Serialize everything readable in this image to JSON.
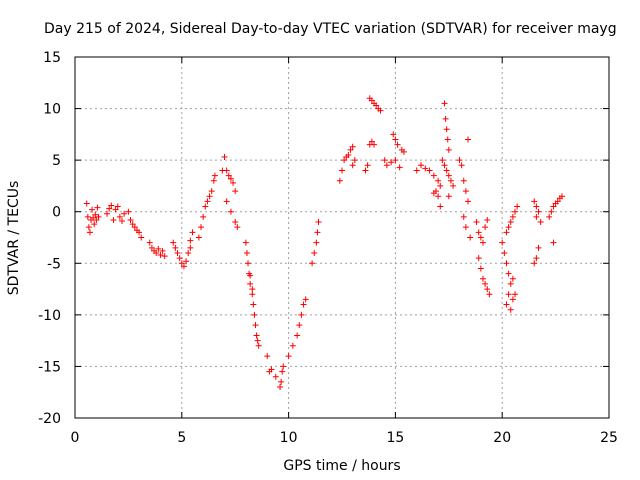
{
  "chart_data": {
    "type": "scatter",
    "title": "Day 215 of 2024, Sidereal Day-to-day VTEC variation (SDTVAR) for receiver mayg",
    "xlabel": "GPS time / hours",
    "ylabel": "SDTVAR / TECUs",
    "xlim": [
      0,
      25
    ],
    "ylim": [
      -20,
      15
    ],
    "xticks": [
      0,
      5,
      10,
      15,
      20,
      25
    ],
    "yticks": [
      -20,
      -15,
      -10,
      -5,
      0,
      5,
      10,
      15
    ],
    "grid": true,
    "marker": "+",
    "color": "#ff0000",
    "series": [
      {
        "name": "SDTVAR",
        "points": [
          [
            0.55,
            0.8
          ],
          [
            0.6,
            -0.5
          ],
          [
            0.65,
            -1.5
          ],
          [
            0.7,
            -2.0
          ],
          [
            0.75,
            -0.8
          ],
          [
            0.8,
            0.2
          ],
          [
            0.85,
            -0.6
          ],
          [
            0.9,
            -1.2
          ],
          [
            0.95,
            -0.3
          ],
          [
            1.0,
            -0.8
          ],
          [
            1.05,
            0.4
          ],
          [
            1.1,
            -0.5
          ],
          [
            1.5,
            -0.2
          ],
          [
            1.6,
            0.3
          ],
          [
            1.7,
            0.6
          ],
          [
            1.8,
            -0.8
          ],
          [
            1.9,
            0.2
          ],
          [
            2.0,
            0.5
          ],
          [
            2.1,
            -0.5
          ],
          [
            2.2,
            -0.9
          ],
          [
            2.3,
            -0.2
          ],
          [
            2.5,
            0.0
          ],
          [
            2.6,
            -0.8
          ],
          [
            2.7,
            -1.2
          ],
          [
            2.8,
            -1.5
          ],
          [
            2.9,
            -1.8
          ],
          [
            3.0,
            -2.0
          ],
          [
            3.1,
            -2.5
          ],
          [
            3.5,
            -3.0
          ],
          [
            3.6,
            -3.5
          ],
          [
            3.7,
            -3.8
          ],
          [
            3.8,
            -4.0
          ],
          [
            3.9,
            -3.6
          ],
          [
            4.0,
            -4.2
          ],
          [
            4.1,
            -3.8
          ],
          [
            4.2,
            -4.3
          ],
          [
            4.6,
            -3.0
          ],
          [
            4.7,
            -3.5
          ],
          [
            4.8,
            -4.0
          ],
          [
            4.9,
            -4.5
          ],
          [
            5.0,
            -5.0
          ],
          [
            5.1,
            -5.3
          ],
          [
            5.2,
            -4.8
          ],
          [
            5.3,
            -4.0
          ],
          [
            5.4,
            -3.5
          ],
          [
            5.5,
            -2.0
          ],
          [
            5.4,
            -2.8
          ],
          [
            5.8,
            -2.5
          ],
          [
            5.9,
            -1.5
          ],
          [
            6.0,
            -0.5
          ],
          [
            6.1,
            0.5
          ],
          [
            6.2,
            1.0
          ],
          [
            6.3,
            1.5
          ],
          [
            6.4,
            2.0
          ],
          [
            6.5,
            3.0
          ],
          [
            6.55,
            3.5
          ],
          [
            6.9,
            4.0
          ],
          [
            7.0,
            5.3
          ],
          [
            7.1,
            4.0
          ],
          [
            7.2,
            3.5
          ],
          [
            7.3,
            3.2
          ],
          [
            7.4,
            2.8
          ],
          [
            7.5,
            2.0
          ],
          [
            7.1,
            1.0
          ],
          [
            7.3,
            0.0
          ],
          [
            7.5,
            -1.0
          ],
          [
            7.6,
            -1.5
          ],
          [
            8.0,
            -3.0
          ],
          [
            8.05,
            -4.0
          ],
          [
            8.1,
            -5.0
          ],
          [
            8.15,
            -6.0
          ],
          [
            8.2,
            -7.0
          ],
          [
            8.3,
            -8.0
          ],
          [
            8.35,
            -9.0
          ],
          [
            8.4,
            -10.0
          ],
          [
            8.45,
            -11.0
          ],
          [
            8.5,
            -12.0
          ],
          [
            8.55,
            -12.5
          ],
          [
            8.6,
            -13.0
          ],
          [
            8.3,
            -7.5
          ],
          [
            8.2,
            -6.2
          ],
          [
            9.0,
            -14.0
          ],
          [
            9.1,
            -15.5
          ],
          [
            9.2,
            -15.3
          ],
          [
            9.4,
            -16.0
          ],
          [
            9.6,
            -17.0
          ],
          [
            9.65,
            -16.5
          ],
          [
            9.7,
            -15.5
          ],
          [
            9.75,
            -15.0
          ],
          [
            10.0,
            -14.0
          ],
          [
            10.2,
            -13.0
          ],
          [
            10.4,
            -12.0
          ],
          [
            10.5,
            -11.0
          ],
          [
            10.6,
            -10.0
          ],
          [
            10.7,
            -9.0
          ],
          [
            10.8,
            -8.5
          ],
          [
            11.1,
            -5.0
          ],
          [
            11.2,
            -4.0
          ],
          [
            11.3,
            -3.0
          ],
          [
            11.35,
            -2.0
          ],
          [
            11.4,
            -1.0
          ],
          [
            12.4,
            3.0
          ],
          [
            12.5,
            4.0
          ],
          [
            12.6,
            5.0
          ],
          [
            12.7,
            5.3
          ],
          [
            12.8,
            5.5
          ],
          [
            12.9,
            6.0
          ],
          [
            13.0,
            6.3
          ],
          [
            13.1,
            5.0
          ],
          [
            13.0,
            4.5
          ],
          [
            13.6,
            4.0
          ],
          [
            13.7,
            4.5
          ],
          [
            13.8,
            6.5
          ],
          [
            13.9,
            6.8
          ],
          [
            14.0,
            6.5
          ],
          [
            13.8,
            11.0
          ],
          [
            13.9,
            10.8
          ],
          [
            14.0,
            10.5
          ],
          [
            14.1,
            10.3
          ],
          [
            14.2,
            10.0
          ],
          [
            14.3,
            9.8
          ],
          [
            14.5,
            5.0
          ],
          [
            14.6,
            4.5
          ],
          [
            14.8,
            4.8
          ],
          [
            15.0,
            5.0
          ],
          [
            15.2,
            4.3
          ],
          [
            14.9,
            7.5
          ],
          [
            15.0,
            7.0
          ],
          [
            15.1,
            6.5
          ],
          [
            15.3,
            6.0
          ],
          [
            15.4,
            5.8
          ],
          [
            16.0,
            4.0
          ],
          [
            16.2,
            4.5
          ],
          [
            16.4,
            4.2
          ],
          [
            16.6,
            4.0
          ],
          [
            16.8,
            3.5
          ],
          [
            17.0,
            3.0
          ],
          [
            17.1,
            2.5
          ],
          [
            16.9,
            2.0
          ],
          [
            17.0,
            1.5
          ],
          [
            17.1,
            0.5
          ],
          [
            16.8,
            1.8
          ],
          [
            17.2,
            5.0
          ],
          [
            17.3,
            4.5
          ],
          [
            17.4,
            4.0
          ],
          [
            17.5,
            3.5
          ],
          [
            17.6,
            3.0
          ],
          [
            17.7,
            2.5
          ],
          [
            17.5,
            1.5
          ],
          [
            17.3,
            10.5
          ],
          [
            17.35,
            9.0
          ],
          [
            17.4,
            8.0
          ],
          [
            17.45,
            7.0
          ],
          [
            17.5,
            6.0
          ],
          [
            18.0,
            5.0
          ],
          [
            18.1,
            4.5
          ],
          [
            18.2,
            3.0
          ],
          [
            18.3,
            2.0
          ],
          [
            18.4,
            1.0
          ],
          [
            18.3,
            -1.5
          ],
          [
            18.5,
            -2.5
          ],
          [
            18.2,
            -0.5
          ],
          [
            18.4,
            7.0
          ],
          [
            18.8,
            -1.0
          ],
          [
            18.9,
            -2.0
          ],
          [
            19.0,
            -2.5
          ],
          [
            19.1,
            -3.0
          ],
          [
            19.2,
            -1.5
          ],
          [
            19.3,
            -0.8
          ],
          [
            18.9,
            -4.5
          ],
          [
            19.0,
            -5.5
          ],
          [
            19.1,
            -6.5
          ],
          [
            19.2,
            -7.0
          ],
          [
            19.3,
            -7.5
          ],
          [
            19.4,
            -8.0
          ],
          [
            20.0,
            -3.0
          ],
          [
            20.1,
            -4.0
          ],
          [
            20.2,
            -5.0
          ],
          [
            20.3,
            -6.0
          ],
          [
            20.4,
            -7.0
          ],
          [
            20.3,
            -8.0
          ],
          [
            20.2,
            -9.0
          ],
          [
            20.4,
            -9.5
          ],
          [
            20.5,
            -8.5
          ],
          [
            20.6,
            -8.0
          ],
          [
            20.5,
            -6.5
          ],
          [
            20.3,
            -1.5
          ],
          [
            20.4,
            -1.0
          ],
          [
            20.5,
            -0.5
          ],
          [
            20.6,
            0.0
          ],
          [
            20.7,
            0.5
          ],
          [
            20.2,
            -2.0
          ],
          [
            21.5,
            1.0
          ],
          [
            21.6,
            0.5
          ],
          [
            21.7,
            0.0
          ],
          [
            21.6,
            -0.5
          ],
          [
            21.8,
            -1.0
          ],
          [
            21.7,
            -3.5
          ],
          [
            21.6,
            -4.5
          ],
          [
            21.5,
            -5.0
          ],
          [
            22.2,
            -0.5
          ],
          [
            22.3,
            0.0
          ],
          [
            22.4,
            0.5
          ],
          [
            22.6,
            1.0
          ],
          [
            22.7,
            1.3
          ],
          [
            22.8,
            1.5
          ],
          [
            22.5,
            0.8
          ],
          [
            22.4,
            -3.0
          ]
        ]
      }
    ]
  }
}
